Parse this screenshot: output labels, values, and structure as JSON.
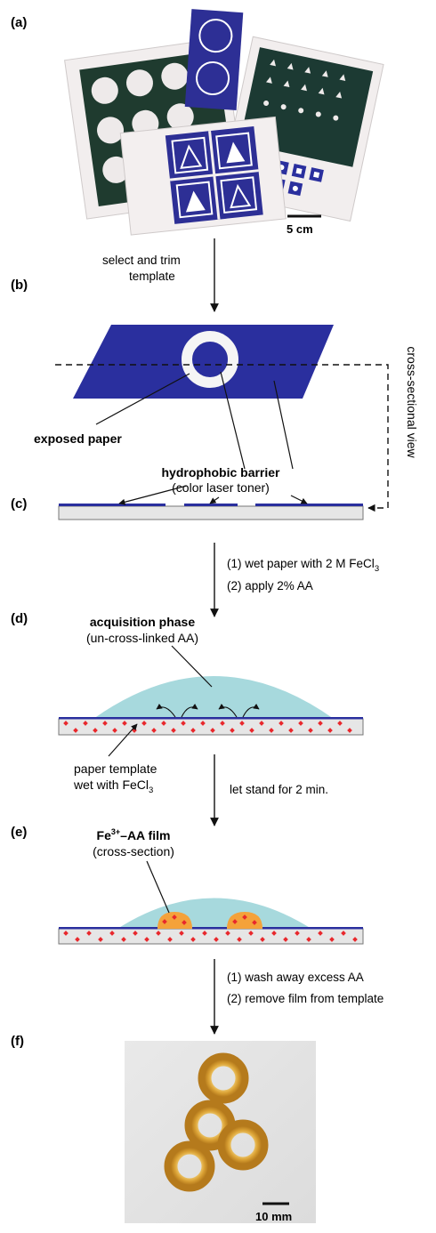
{
  "panels": {
    "a": "(a)",
    "b": "(b)",
    "c": "(c)",
    "d": "(d)",
    "e": "(e)",
    "f": "(f)"
  },
  "scale_bars": {
    "photo_a": "5 cm",
    "photo_f": "10 mm"
  },
  "steps": {
    "select_line1": "select and trim",
    "select_line2": "template",
    "wet_step_prefix": "(1)  wet paper with 2 M FeCl",
    "wet_step_subscript": "3",
    "apply_step": "(2)  apply 2% AA",
    "let_stand": "let stand for 2 min.",
    "wash_step": "(1)  wash away excess AA",
    "remove_step": "(2)  remove film from template"
  },
  "labels": {
    "exposed_paper": "exposed paper",
    "hydrophobic_barrier": "hydrophobic barrier",
    "color_laser_toner": "(color laser toner)",
    "cross_sectional_view": "cross-sectional view",
    "acquisition_phase": "acquisition phase",
    "un_cross_linked": "(un-cross-linked AA)",
    "paper_template_line1": "paper template",
    "paper_template_line2_prefix": "wet with FeCl",
    "paper_template_line2_subscript": "3",
    "film_title_prefix": "Fe",
    "film_title_superscript": "3+",
    "film_title_suffix": "–AA film",
    "cross_section": "(cross-section)"
  },
  "colors": {
    "toner_blue": "#2a2f9e",
    "paper_grey": "#e6e6e6",
    "gel_cyan": "#a7d9dd",
    "iron_red": "#e8282c",
    "film_orange": "#f4a23a",
    "ring_amber": "#d9a033"
  }
}
